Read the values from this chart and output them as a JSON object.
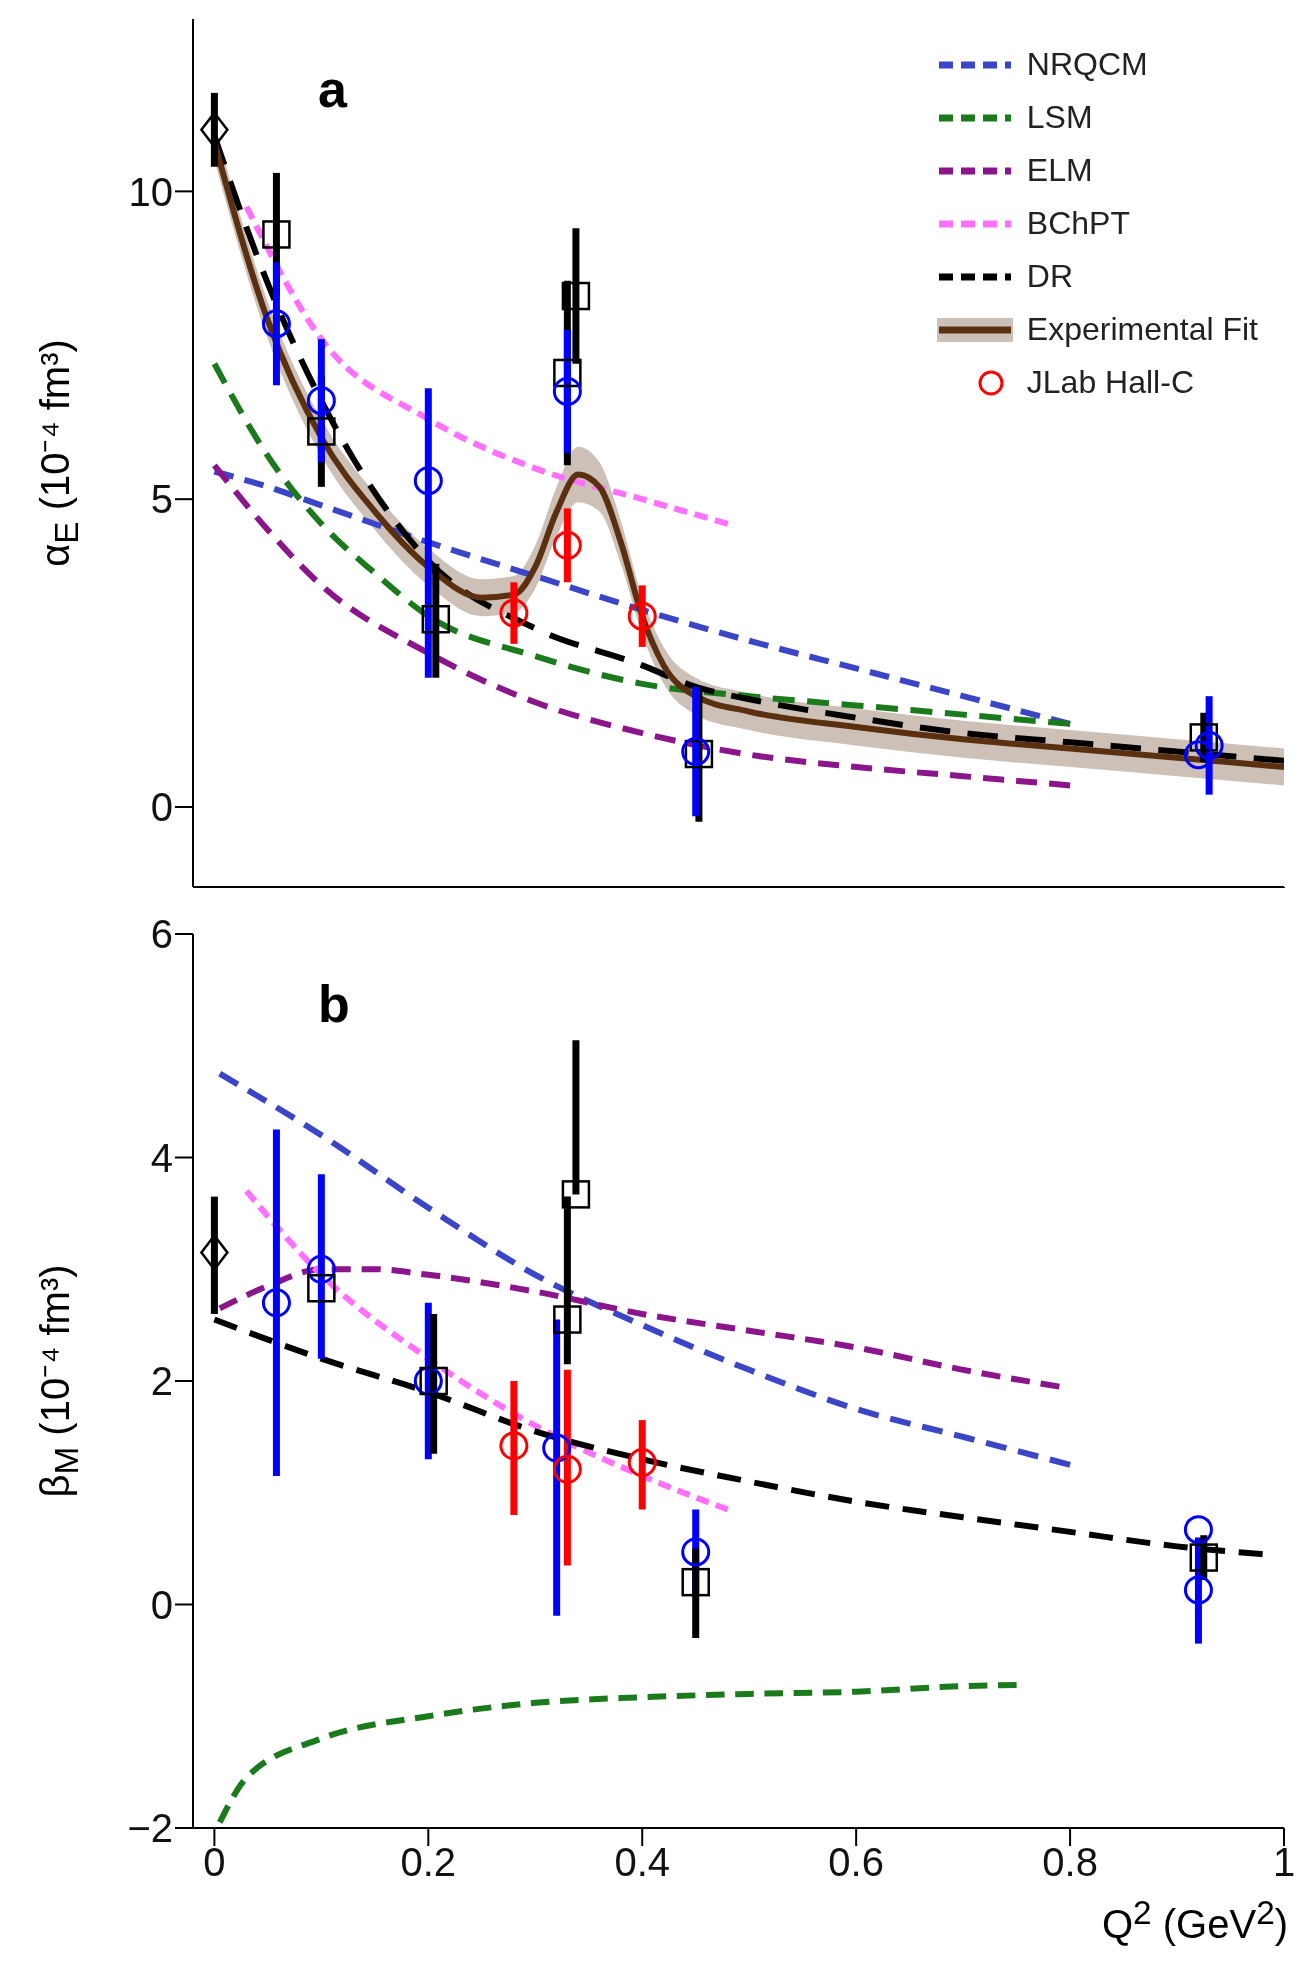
{
  "chart_data": [
    {
      "type": "line",
      "ylabel": "α$_{E}$ (10⁻⁴ fm³)",
      "annotations": [
        "a"
      ],
      "xlim": [
        -0.02,
        1.0
      ],
      "xticks": [
        0,
        0.2,
        0.4,
        0.6,
        0.8,
        1
      ],
      "ylim": [
        -1.3,
        12.8
      ],
      "yticks": [
        0,
        5,
        10
      ],
      "tick_labels": "y",
      "legend": "top right",
      "series": [
        {
          "name": "NRQCM",
          "type": "line",
          "color": "#3b45c8",
          "line_style": "dashed",
          "x": [
            0,
            0.05,
            0.1,
            0.2,
            0.3,
            0.4,
            0.5,
            0.6,
            0.7,
            0.8
          ],
          "values": [
            5.45,
            5.2,
            4.9,
            4.3,
            3.75,
            3.2,
            2.7,
            2.25,
            1.8,
            1.35
          ]
        },
        {
          "name": "LSM",
          "type": "line",
          "color": "#1b7a1b",
          "line_style": "dashed",
          "x": [
            0,
            0.05,
            0.1,
            0.15,
            0.2,
            0.3,
            0.4,
            0.5,
            0.6,
            0.7,
            0.8
          ],
          "values": [
            7.2,
            5.7,
            4.6,
            3.8,
            3.1,
            2.45,
            2.0,
            1.8,
            1.65,
            1.5,
            1.35
          ]
        },
        {
          "name": "ELM",
          "type": "line",
          "color": "#8b168b",
          "line_style": "dashed",
          "x": [
            0,
            0.05,
            0.1,
            0.2,
            0.3,
            0.4,
            0.5,
            0.6,
            0.7,
            0.8
          ],
          "values": [
            5.55,
            4.5,
            3.6,
            2.5,
            1.7,
            1.2,
            0.85,
            0.65,
            0.5,
            0.35
          ]
        },
        {
          "name": "BChPT",
          "type": "line",
          "color": "#ff70ff",
          "line_style": "dashed",
          "x": [
            0.03,
            0.1,
            0.2,
            0.3,
            0.4,
            0.48
          ],
          "values": [
            9.75,
            7.6,
            6.3,
            5.5,
            5.0,
            4.6
          ]
        },
        {
          "name": "DR",
          "type": "line",
          "color": "#000000",
          "line_style": "dashed",
          "x": [
            0,
            0.05,
            0.1,
            0.2,
            0.3,
            0.4,
            0.45,
            0.5,
            0.6,
            0.7,
            0.8,
            0.9,
            1.0
          ],
          "values": [
            10.9,
            8.5,
            6.6,
            4.0,
            2.9,
            2.3,
            1.95,
            1.75,
            1.45,
            1.2,
            1.05,
            0.9,
            0.75
          ]
        },
        {
          "name": "Experimental Fit",
          "type": "line",
          "color": "#5a3010",
          "line_style": "solid",
          "x": [
            0,
            0.05,
            0.1,
            0.15,
            0.2,
            0.25,
            0.28,
            0.3,
            0.32,
            0.34,
            0.36,
            0.38,
            0.4,
            0.42,
            0.45,
            0.5,
            0.6,
            0.7,
            0.8,
            0.9,
            1.0
          ],
          "values": [
            10.8,
            7.9,
            6.0,
            4.8,
            3.9,
            3.4,
            3.45,
            3.9,
            4.8,
            5.4,
            5.2,
            4.3,
            3.1,
            2.3,
            1.8,
            1.55,
            1.3,
            1.1,
            0.95,
            0.8,
            0.65
          ],
          "lower": [
            10.5,
            7.6,
            5.7,
            4.5,
            3.6,
            3.1,
            3.15,
            3.55,
            4.4,
            4.95,
            4.8,
            3.95,
            2.8,
            2.0,
            1.5,
            1.25,
            1.0,
            0.8,
            0.65,
            0.5,
            0.35
          ],
          "upper": [
            11.1,
            8.2,
            6.3,
            5.1,
            4.2,
            3.7,
            3.75,
            4.25,
            5.2,
            5.85,
            5.6,
            4.65,
            3.4,
            2.6,
            2.1,
            1.85,
            1.6,
            1.4,
            1.25,
            1.1,
            0.95
          ]
        },
        {
          "type": "scatter",
          "color": "#000000",
          "marker": "diamond",
          "x": [
            0
          ],
          "values": [
            11.0
          ],
          "errors": [
            0.6
          ]
        },
        {
          "type": "scatter",
          "color": "#000000",
          "marker": "square",
          "x": [
            0.058,
            0.1,
            0.207,
            0.33,
            0.338,
            0.453,
            0.925
          ],
          "values": [
            9.3,
            6.1,
            3.05,
            7.05,
            8.3,
            0.86,
            1.13
          ],
          "errors": [
            1.0,
            0.9,
            [
              2.1,
              3.95
            ],
            1.5,
            1.1,
            1.1,
            0.4
          ]
        },
        {
          "type": "scatter",
          "color": "#0000ff",
          "marker": "circle",
          "x": [
            0.058,
            0.1,
            0.2,
            0.33,
            0.45,
            0.92,
            0.93
          ],
          "values": [
            7.85,
            6.6,
            5.3,
            6.75,
            0.9,
            0.85,
            1.0
          ],
          "errors": [
            1.0,
            1.0,
            [
              2.1,
              6.8
            ],
            1.0,
            1.05,
            null,
            0.8
          ]
        },
        {
          "name": "JLab Hall-C",
          "type": "scatter",
          "color": "#ff0000",
          "marker": "circle",
          "x": [
            0.28,
            0.33,
            0.4
          ],
          "values": [
            3.15,
            4.25,
            3.1
          ],
          "errors": [
            0.5,
            0.6,
            0.5
          ]
        }
      ]
    },
    {
      "type": "line",
      "ylabel": "β$_{M}$ (10⁻⁴ fm³)",
      "xlabel": "Q$^{2}$ (GeV$^{2}$)",
      "annotations": [
        "b"
      ],
      "xlim": [
        -0.02,
        1.0
      ],
      "xticks": [
        0,
        0.2,
        0.4,
        0.6,
        0.8,
        1
      ],
      "ylim": [
        -2,
        6
      ],
      "yticks": [
        -2,
        0,
        2,
        4,
        6
      ],
      "series": [
        {
          "type": "line",
          "color": "#3b45c8",
          "line_style": "dashed",
          "x": [
            0.005,
            0.1,
            0.2,
            0.3,
            0.4,
            0.5,
            0.6,
            0.7,
            0.8
          ],
          "values": [
            4.75,
            4.2,
            3.55,
            2.95,
            2.5,
            2.1,
            1.75,
            1.5,
            1.25
          ]
        },
        {
          "type": "line",
          "color": "#1b7a1b",
          "line_style": "dashed",
          "x": [
            0.005,
            0.03,
            0.1,
            0.2,
            0.3,
            0.4,
            0.5,
            0.6,
            0.7,
            0.75
          ],
          "values": [
            -1.95,
            -1.55,
            -1.2,
            -1.0,
            -0.88,
            -0.83,
            -0.8,
            -0.78,
            -0.73,
            -0.72
          ]
        },
        {
          "type": "line",
          "color": "#8b168b",
          "line_style": "dashed",
          "x": [
            0.005,
            0.05,
            0.1,
            0.15,
            0.2,
            0.3,
            0.4,
            0.5,
            0.6,
            0.7,
            0.79
          ],
          "values": [
            2.65,
            2.85,
            3.0,
            3.0,
            2.95,
            2.8,
            2.6,
            2.45,
            2.3,
            2.1,
            1.95
          ]
        },
        {
          "type": "line",
          "color": "#ff70ff",
          "line_style": "dashed",
          "x": [
            0.03,
            0.1,
            0.2,
            0.3,
            0.4,
            0.48
          ],
          "values": [
            3.7,
            2.95,
            2.2,
            1.6,
            1.15,
            0.85
          ]
        },
        {
          "type": "line",
          "color": "#000000",
          "line_style": "dashed",
          "x": [
            0,
            0.1,
            0.2,
            0.3,
            0.4,
            0.5,
            0.6,
            0.7,
            0.8,
            0.9,
            0.98
          ],
          "values": [
            2.55,
            2.2,
            1.9,
            1.55,
            1.3,
            1.1,
            0.92,
            0.78,
            0.65,
            0.52,
            0.45
          ]
        },
        {
          "type": "scatter",
          "color": "#000000",
          "marker": "diamond",
          "x": [
            0
          ],
          "values": [
            3.15
          ],
          "errors": [
            [
              2.6,
              3.65
            ]
          ]
        },
        {
          "type": "scatter",
          "color": "#0000ff",
          "marker": "circle",
          "x": [
            0.058,
            0.1,
            0.2,
            0.32,
            0.45,
            0.92,
            0.92
          ],
          "values": [
            2.7,
            3.0,
            2.0,
            1.4,
            0.47,
            0.67,
            0.13
          ],
          "errors": [
            [
              1.15,
              4.25
            ],
            [
              2.2,
              3.85
            ],
            [
              1.3,
              2.7
            ],
            [
              -0.1,
              2.55
            ],
            [
              0.1,
              0.85
            ],
            null,
            [
              -0.35,
              0.6
            ]
          ]
        },
        {
          "type": "scatter",
          "color": "#000000",
          "marker": "square",
          "x": [
            0.1,
            0.205,
            0.33,
            0.338,
            0.45,
            0.925
          ],
          "values": [
            2.83,
            2.0,
            2.55,
            3.67,
            0.2,
            0.42
          ],
          "errors": [
            null,
            [
              1.35,
              2.6
            ],
            [
              2.15,
              3.65
            ],
            [
              3.67,
              5.05
            ],
            [
              -0.3,
              0.5
            ],
            0.2
          ]
        },
        {
          "type": "scatter",
          "color": "#ff0000",
          "marker": "circle",
          "x": [
            0.28,
            0.33,
            0.4
          ],
          "values": [
            1.42,
            1.21,
            1.27
          ],
          "errors": [
            [
              0.8,
              2.0
            ],
            [
              0.35,
              2.1
            ],
            [
              0.85,
              1.65
            ]
          ]
        }
      ]
    }
  ]
}
